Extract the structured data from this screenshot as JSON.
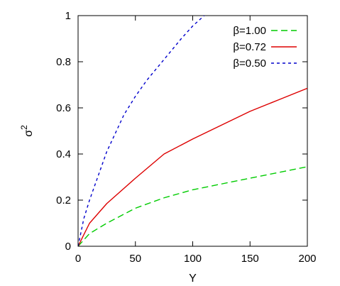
{
  "chart_data": {
    "type": "line",
    "title": "",
    "xlabel": "Y",
    "ylabel": "σ",
    "ylabel_sup": "2",
    "xlim": [
      0,
      200
    ],
    "ylim": [
      0,
      1
    ],
    "x_ticks": [
      0,
      50,
      100,
      150,
      200
    ],
    "y_ticks": [
      0,
      0.2,
      0.4,
      0.6,
      0.8,
      1
    ],
    "x_tick_labels": [
      "0",
      "50",
      "100",
      "150",
      "200"
    ],
    "y_tick_labels": [
      "0",
      "0.2",
      "0.4",
      "0.6",
      "0.8",
      "1"
    ],
    "grid": false,
    "legend_position": "top-right",
    "series": [
      {
        "name": "β=1.00",
        "color": "#00cc00",
        "dash": "dashed",
        "x": [
          0,
          10,
          25,
          50,
          75,
          100,
          125,
          150,
          175,
          200
        ],
        "y": [
          0,
          0.055,
          0.1,
          0.165,
          0.21,
          0.245,
          0.27,
          0.295,
          0.32,
          0.345
        ]
      },
      {
        "name": "β=0.72",
        "color": "#dd0000",
        "dash": "solid",
        "x": [
          0,
          10,
          25,
          50,
          75,
          100,
          125,
          150,
          175,
          200
        ],
        "y": [
          0,
          0.1,
          0.185,
          0.295,
          0.4,
          0.465,
          0.525,
          0.585,
          0.635,
          0.685
        ]
      },
      {
        "name": "β=0.50",
        "color": "#0000cc",
        "dash": "dotted",
        "x": [
          0,
          5,
          10,
          25,
          40,
          50,
          60,
          75,
          90,
          100,
          110
        ],
        "y": [
          0,
          0.12,
          0.2,
          0.41,
          0.57,
          0.65,
          0.72,
          0.81,
          0.9,
          0.955,
          1.0
        ]
      }
    ]
  }
}
